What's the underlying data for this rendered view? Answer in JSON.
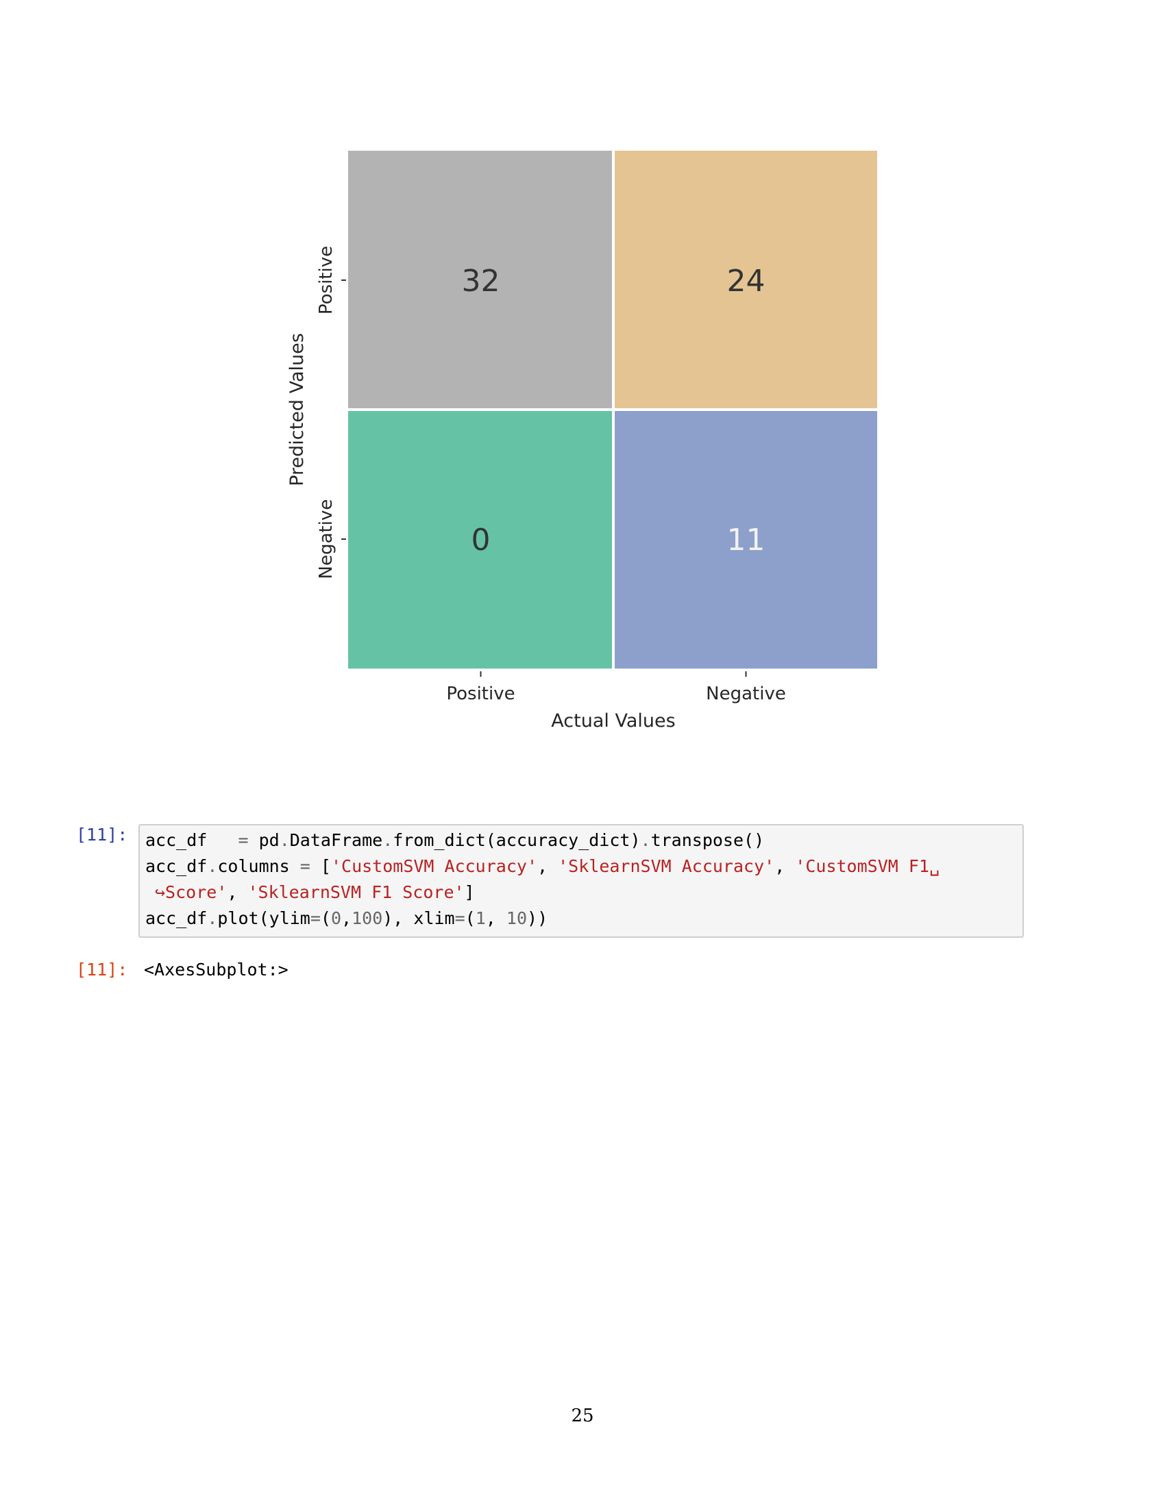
{
  "figure": {
    "chart_data": {
      "type": "heatmap",
      "x_categories": [
        "Positive",
        "Negative"
      ],
      "y_categories": [
        "Positive",
        "Negative"
      ],
      "xlabel": "Actual Values",
      "ylabel": "Predicted Values",
      "values": [
        [
          32,
          24
        ],
        [
          0,
          11
        ]
      ],
      "cell_colors": [
        [
          "#b3b3b3",
          "#e5c494"
        ],
        [
          "#66c2a5",
          "#8da0cb"
        ]
      ],
      "value_colors": [
        [
          "#333333",
          "#333333"
        ],
        [
          "#333333",
          "#f2f2f2"
        ]
      ],
      "colorbar": false
    }
  },
  "cell": {
    "input_prompt": "[11]:",
    "code_lines": [
      [
        {
          "t": "acc_df  ",
          "c": ""
        },
        {
          "t": " = ",
          "c": "k-op"
        },
        {
          "t": "pd",
          "c": ""
        },
        {
          "t": ".",
          "c": "k-op"
        },
        {
          "t": "DataFrame",
          "c": ""
        },
        {
          "t": ".",
          "c": "k-op"
        },
        {
          "t": "from_dict(accuracy_dict)",
          "c": ""
        },
        {
          "t": ".",
          "c": "k-op"
        },
        {
          "t": "transpose()",
          "c": ""
        }
      ],
      [
        {
          "t": "acc_df",
          "c": ""
        },
        {
          "t": ".",
          "c": "k-op"
        },
        {
          "t": "columns ",
          "c": ""
        },
        {
          "t": "=",
          "c": "k-op"
        },
        {
          "t": " [",
          "c": ""
        },
        {
          "t": "'CustomSVM Accuracy'",
          "c": "k-str"
        },
        {
          "t": ", ",
          "c": ""
        },
        {
          "t": "'SklearnSVM Accuracy'",
          "c": "k-str"
        },
        {
          "t": ", ",
          "c": ""
        },
        {
          "t": "'CustomSVM F1␣",
          "c": "k-str"
        }
      ],
      [
        {
          "t": "↪Score'",
          "c": "k-str"
        },
        {
          "t": ", ",
          "c": ""
        },
        {
          "t": "'SklearnSVM F1 Score'",
          "c": "k-str"
        },
        {
          "t": "]",
          "c": ""
        }
      ],
      [
        {
          "t": "acc_df",
          "c": ""
        },
        {
          "t": ".",
          "c": "k-op"
        },
        {
          "t": "plot(ylim",
          "c": ""
        },
        {
          "t": "=",
          "c": "k-op"
        },
        {
          "t": "(",
          "c": ""
        },
        {
          "t": "0",
          "c": "k-num"
        },
        {
          "t": ",",
          "c": ""
        },
        {
          "t": "100",
          "c": "k-num"
        },
        {
          "t": "), xlim",
          "c": ""
        },
        {
          "t": "=",
          "c": "k-op"
        },
        {
          "t": "(",
          "c": ""
        },
        {
          "t": "1",
          "c": "k-num"
        },
        {
          "t": ", ",
          "c": ""
        },
        {
          "t": "10",
          "c": "k-num"
        },
        {
          "t": "))",
          "c": ""
        }
      ]
    ],
    "output_prompt": "[11]:",
    "output_text": "<AxesSubplot:>"
  },
  "page_number": "25"
}
